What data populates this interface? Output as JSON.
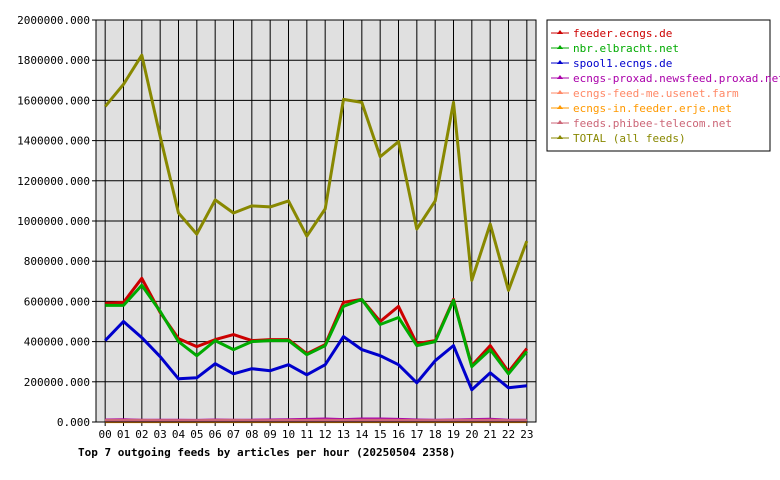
{
  "chart_data": {
    "type": "line",
    "title": "Top 7 outgoing feeds by articles per hour (20250504 2358)",
    "xlabel": "",
    "ylabel": "",
    "ylim": [
      0,
      2000000
    ],
    "yticks": [
      "0.000",
      "200000.000",
      "400000.000",
      "600000.000",
      "800000.000",
      "1000000.000",
      "1200000.000",
      "1400000.000",
      "1600000.000",
      "1800000.000",
      "2000000.000"
    ],
    "grid": true,
    "legend_position": "right",
    "categories": [
      "00",
      "01",
      "02",
      "03",
      "04",
      "05",
      "06",
      "07",
      "08",
      "09",
      "10",
      "11",
      "12",
      "13",
      "14",
      "15",
      "16",
      "17",
      "18",
      "19",
      "20",
      "21",
      "22",
      "23"
    ],
    "series": [
      {
        "name": "feeder.ecngs.de",
        "color": "#cc0000",
        "values": [
          590000,
          595000,
          715000,
          545000,
          415000,
          375000,
          410000,
          435000,
          405000,
          410000,
          410000,
          340000,
          385000,
          595000,
          610000,
          500000,
          575000,
          390000,
          405000,
          610000,
          280000,
          380000,
          250000,
          365000
        ]
      },
      {
        "name": "nbr.elbracht.net",
        "color": "#00aa00",
        "values": [
          580000,
          580000,
          680000,
          550000,
          400000,
          330000,
          405000,
          360000,
          400000,
          405000,
          405000,
          335000,
          380000,
          575000,
          610000,
          485000,
          520000,
          380000,
          400000,
          605000,
          275000,
          360000,
          240000,
          350000
        ]
      },
      {
        "name": "spool1.ecngs.de",
        "color": "#0000cc",
        "values": [
          405000,
          500000,
          420000,
          325000,
          215000,
          220000,
          290000,
          240000,
          265000,
          255000,
          285000,
          235000,
          285000,
          425000,
          360000,
          330000,
          285000,
          195000,
          305000,
          380000,
          160000,
          245000,
          170000,
          180000
        ]
      },
      {
        "name": "ecngs-proxad.newsfeed.proxad.net",
        "color": "#aa00aa",
        "values": [
          10000,
          11000,
          9000,
          9000,
          9000,
          8000,
          10000,
          9000,
          9000,
          10000,
          11000,
          13000,
          15000,
          12000,
          15000,
          15000,
          13000,
          10000,
          9000,
          10000,
          12000,
          14000,
          9000,
          9000
        ]
      },
      {
        "name": "ecngs-feed-me.usenet.farm",
        "color": "#ff8866",
        "values": [
          6000,
          6000,
          6000,
          5000,
          5000,
          5000,
          5000,
          5000,
          5000,
          5000,
          5000,
          5000,
          5000,
          6000,
          6000,
          6000,
          6000,
          5000,
          5000,
          5000,
          5000,
          5000,
          5000,
          5000
        ]
      },
      {
        "name": "ecngs-in.feeder.erje.net",
        "color": "#ff9900",
        "values": [
          2000,
          2000,
          2000,
          2000,
          2000,
          2000,
          2000,
          2000,
          2000,
          2000,
          2000,
          2000,
          2000,
          2000,
          2000,
          2000,
          2000,
          2000,
          2000,
          2000,
          2000,
          2000,
          2000,
          2000
        ]
      },
      {
        "name": "feeds.phibee-telecom.net",
        "color": "#cc6677",
        "values": [
          8000,
          8000,
          8000,
          7000,
          7000,
          7000,
          8000,
          8000,
          7000,
          7000,
          8000,
          8000,
          9000,
          8000,
          9000,
          9000,
          8000,
          7000,
          7000,
          8000,
          8000,
          9000,
          7000,
          7000
        ]
      },
      {
        "name": "TOTAL (all feeds)",
        "color": "#888800",
        "values": [
          1570000,
          1680000,
          1825000,
          1420000,
          1040000,
          935000,
          1105000,
          1040000,
          1075000,
          1070000,
          1100000,
          925000,
          1060000,
          1605000,
          1590000,
          1320000,
          1395000,
          960000,
          1100000,
          1590000,
          705000,
          985000,
          655000,
          900000
        ]
      }
    ]
  }
}
